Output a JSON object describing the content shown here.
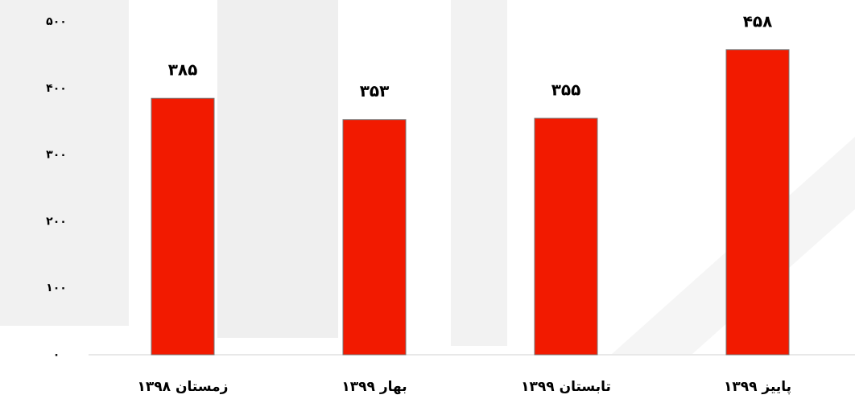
{
  "chart_data": {
    "type": "bar",
    "categories": [
      "زمستان ۱۳۹۸",
      "بهار ۱۳۹۹",
      "تابستان ۱۳۹۹",
      "پاییز ۱۳۹۹"
    ],
    "values": [
      385,
      353,
      355,
      458
    ],
    "value_labels": [
      "۳۸۵",
      "۳۵۳",
      "۳۵۵",
      "۴۵۸"
    ],
    "color": "#f21a00",
    "ylim": [
      0,
      500
    ],
    "yticks": [
      {
        "value": 0,
        "label": "۰"
      },
      {
        "value": 100,
        "label": "۱۰۰"
      },
      {
        "value": 200,
        "label": "۲۰۰"
      },
      {
        "value": 300,
        "label": "۳۰۰"
      },
      {
        "value": 400,
        "label": "۴۰۰"
      },
      {
        "value": 500,
        "label": "۵۰۰"
      }
    ],
    "grid": false
  }
}
